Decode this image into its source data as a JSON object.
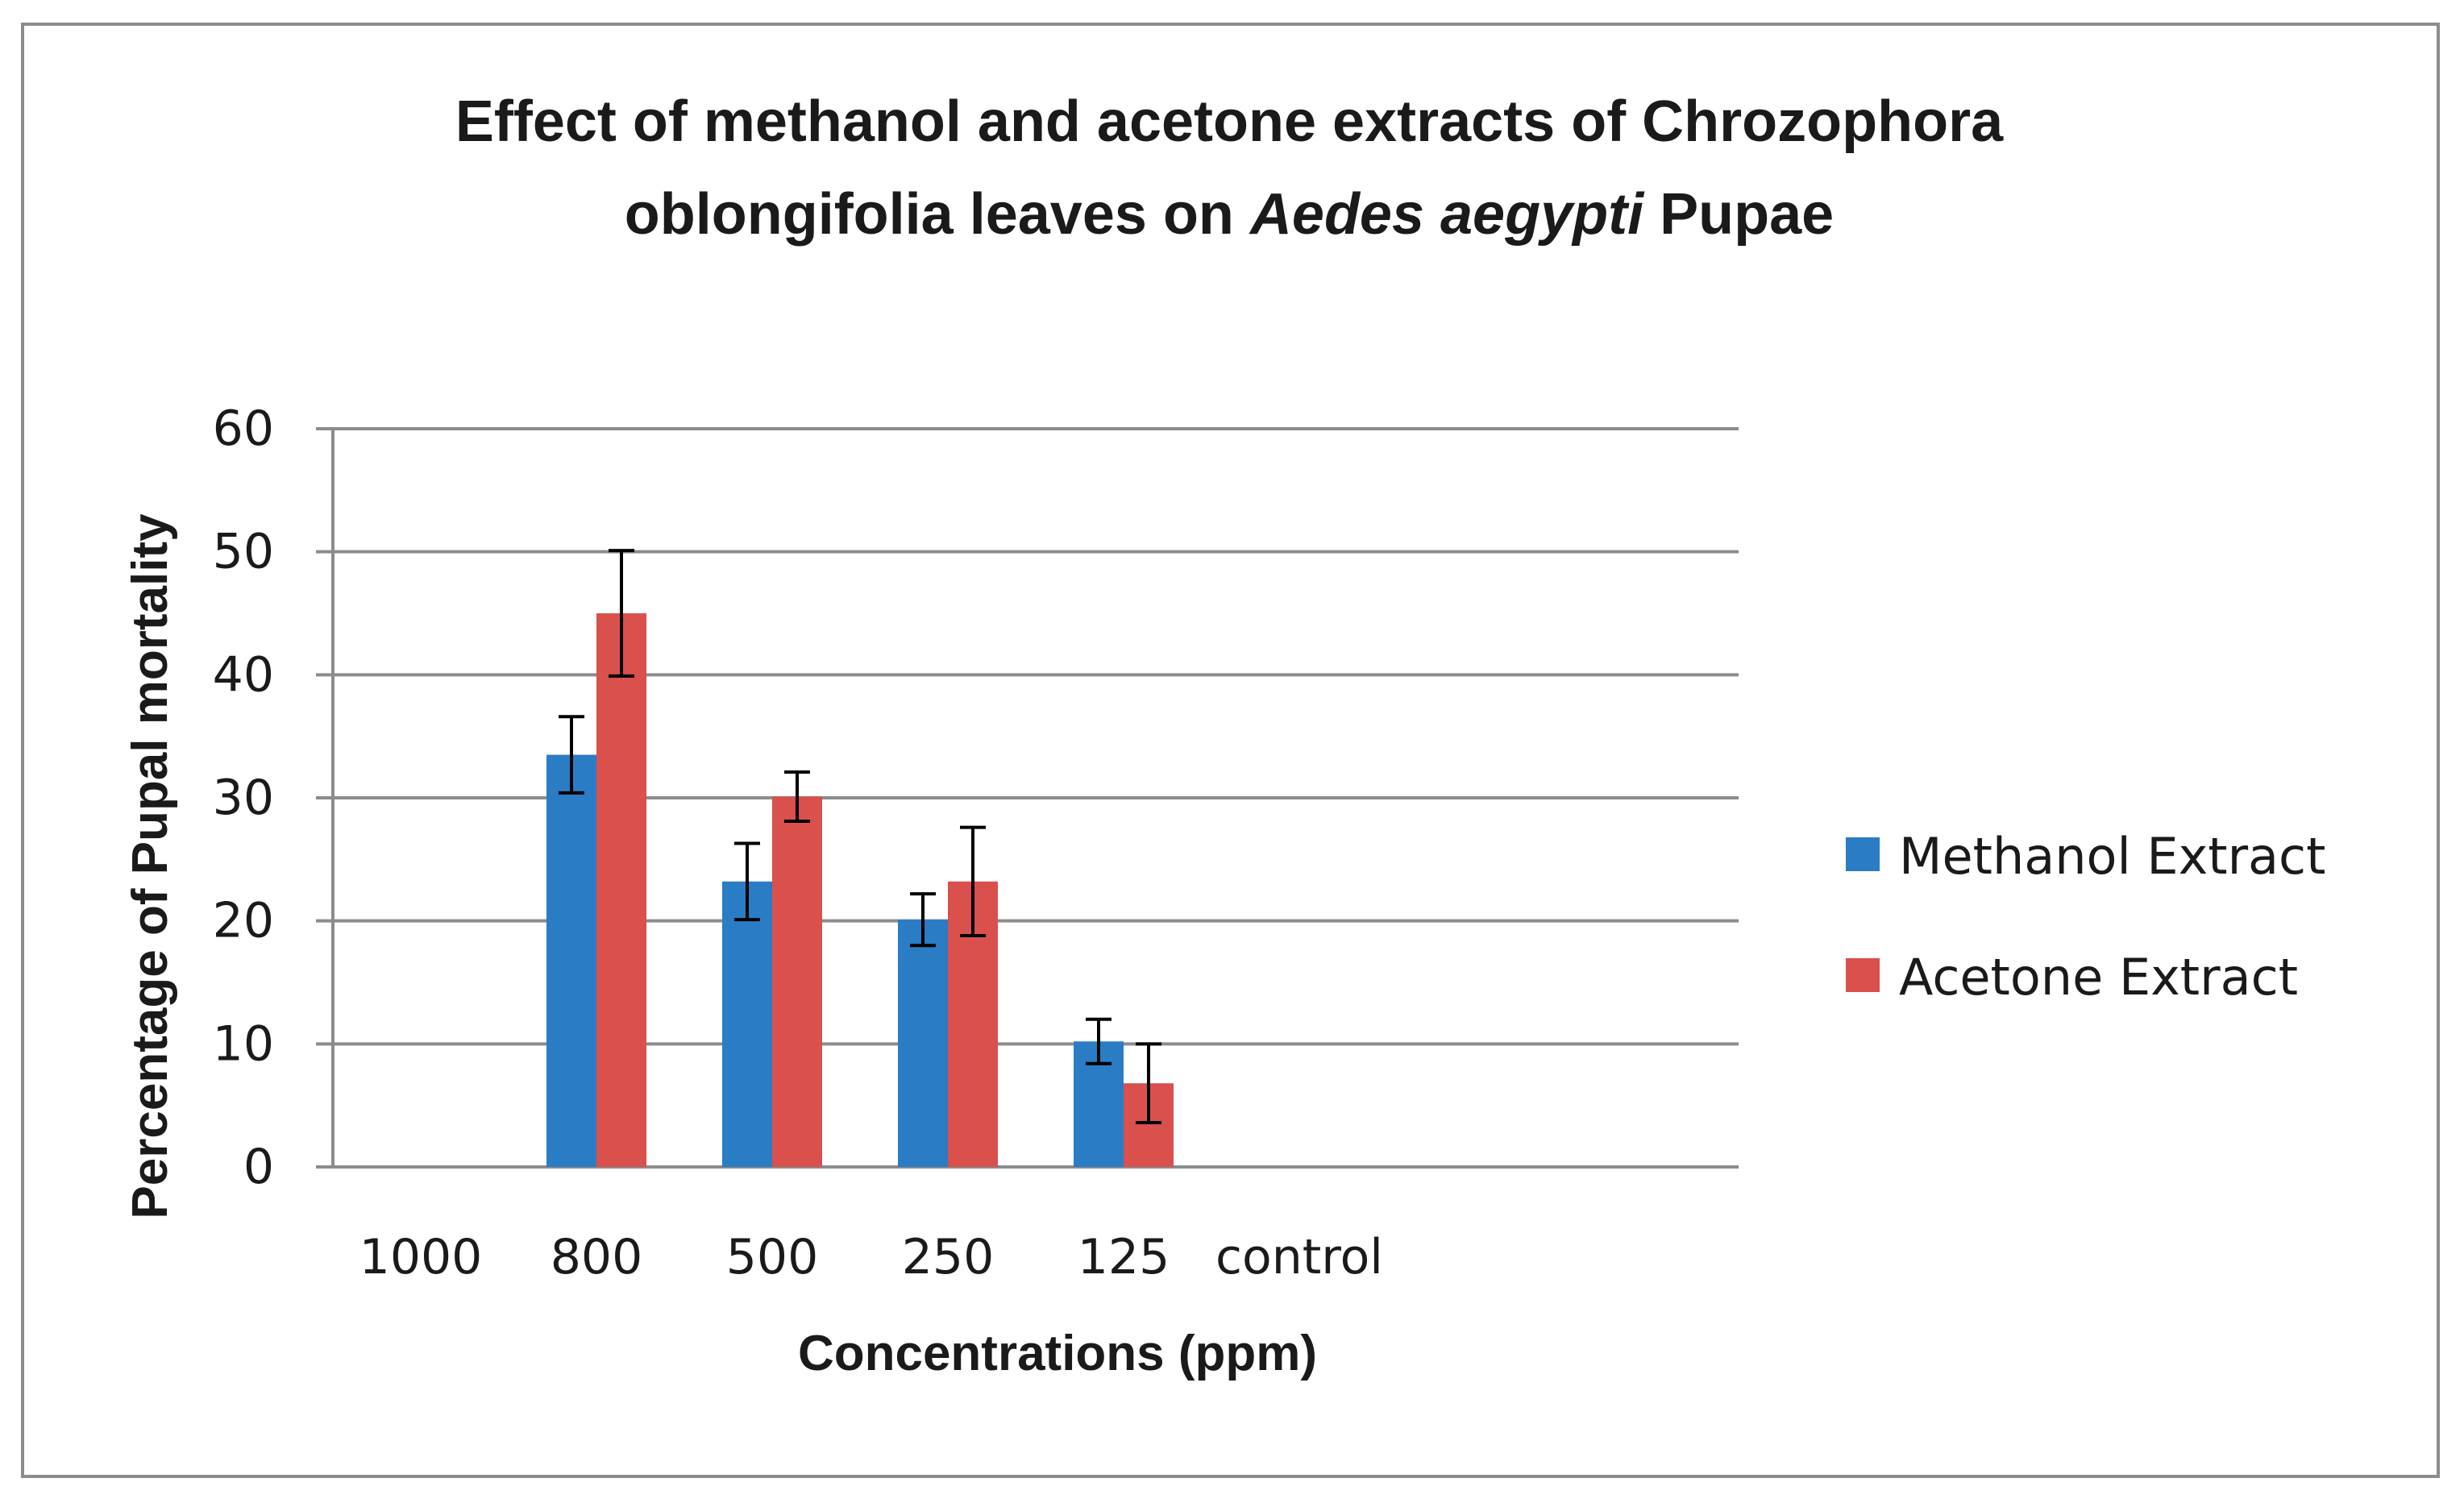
{
  "chart_data": {
    "type": "bar",
    "title": {
      "line1": "Effect of methanol and acetone extracts of Chrozophora",
      "line2_prefix": "oblongifolia leaves on",
      "line2_italic": "Aedes aegypti",
      "line2_suffix": "Pupae"
    },
    "xlabel": "Concentrations (ppm)",
    "ylabel": "Percentage of Pupal mortality",
    "categories": [
      "1000",
      "800",
      "500",
      "250",
      "125",
      "control"
    ],
    "ylim": [
      0,
      60
    ],
    "yticks": [
      0,
      10,
      20,
      30,
      40,
      50,
      60
    ],
    "grid": true,
    "legend_position": "right",
    "series": [
      {
        "name": "Methanol Extract",
        "color": "#2a7cc4",
        "values": [
          0,
          33.5,
          23.2,
          20.1,
          10.2,
          0
        ],
        "errors": [
          0,
          3.1,
          3.1,
          2.1,
          1.8,
          0
        ]
      },
      {
        "name": "Acetone Extract",
        "color": "#d9504d",
        "values": [
          0,
          45,
          30.1,
          23.2,
          6.8,
          0
        ],
        "errors": [
          0,
          5.1,
          2.0,
          4.4,
          3.2,
          0
        ]
      }
    ]
  }
}
